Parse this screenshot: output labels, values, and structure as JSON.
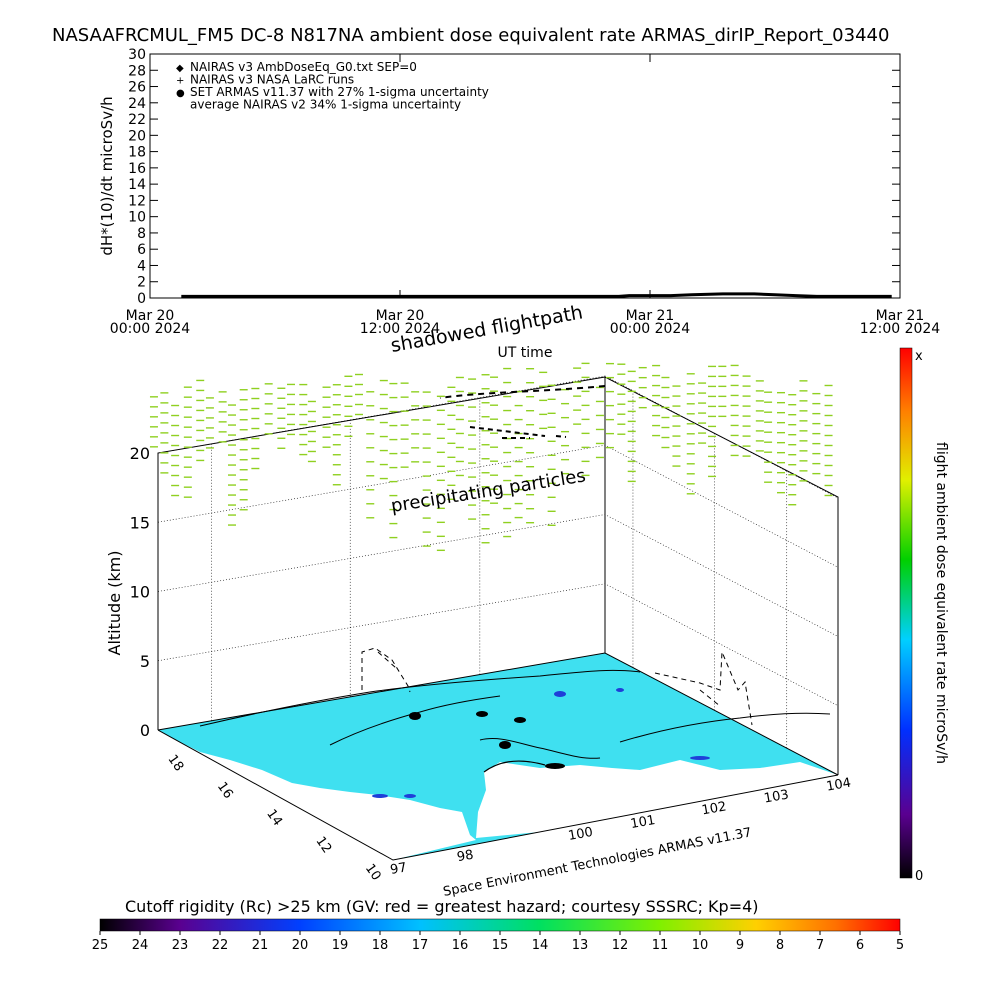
{
  "header": {
    "title": "NASAAFRCMUL_FM5 DC-8    N817NA ambient dose equivalent rate ARMAS_dirIP_Report_03440"
  },
  "chart_data": [
    {
      "type": "line",
      "ylabel": "dH*(10)/dt microSv/h",
      "xlabel": "UT time",
      "ylim": [
        0,
        30
      ],
      "yticks": [
        0,
        2,
        4,
        6,
        8,
        10,
        12,
        14,
        16,
        18,
        20,
        22,
        24,
        26,
        28,
        30
      ],
      "xticks": [
        {
          "line1": "Mar 20",
          "line2": "00:00 2024"
        },
        {
          "line1": "Mar 20",
          "line2": "12:00 2024"
        },
        {
          "line1": "Mar 21",
          "line2": "00:00 2024"
        },
        {
          "line1": "Mar 21",
          "line2": "12:00 2024"
        }
      ],
      "xlim_hours": [
        0,
        36
      ],
      "legend_position": "top-left",
      "legend": [
        {
          "symbol": "◆",
          "label": "NAIRAS v3 AmbDoseEq_G0.txt SEP=0"
        },
        {
          "symbol": "+",
          "label": "NAIRAS v3 NASA LaRC runs"
        },
        {
          "symbol": "●",
          "label": "SET ARMAS v11.37 with 27% 1-sigma uncertainty",
          "color": "#1f3fd8"
        },
        {
          "symbol": "",
          "label": "average NAIRAS v2 34% 1-sigma uncertainty"
        }
      ],
      "series": [
        {
          "x_hours": [
            1.5,
            6,
            12,
            18,
            21,
            22.5,
            23,
            24,
            25,
            26,
            27.5,
            29,
            30,
            31,
            32,
            33,
            34,
            35.6
          ],
          "values": [
            0.2,
            0.2,
            0.2,
            0.2,
            0.2,
            0.2,
            0.3,
            0.3,
            0.3,
            0.4,
            0.5,
            0.5,
            0.4,
            0.3,
            0.2,
            0.2,
            0.2,
            0.2
          ]
        }
      ]
    },
    {
      "type": "heatmap",
      "projection": "3d",
      "zlabel": "Altitude (km)",
      "zticks": [
        0,
        5,
        10,
        15,
        20
      ],
      "lat_ticks": [
        10,
        12,
        14,
        16,
        18
      ],
      "lon_ticks": [
        97,
        98,
        100,
        101,
        102,
        103,
        104
      ],
      "annotations": [
        "shadowed flightpath",
        "precipitating particles",
        "Space Environment Technologies ARMAS v11.37"
      ],
      "colorbar": {
        "label": "flight ambient dose equivalent rate microSv/h",
        "top_label": "x",
        "bottom_label": "0"
      }
    }
  ],
  "rigidity_bar": {
    "title": "Cutoff rigidity (Rc) >25 km (GV: red = greatest hazard; courtesy SSSRC; Kp=4)",
    "ticks": [
      "25",
      "24",
      "23",
      "22",
      "21",
      "20",
      "19",
      "18",
      "17",
      "16",
      "15",
      "14",
      "13",
      "12",
      "11",
      "10",
      "9",
      "8",
      "7",
      "6",
      "5"
    ]
  },
  "colors": {
    "map_fill": "#3fe0f0",
    "particles": "#8fd020",
    "armas_point": "#1f3fd8"
  }
}
